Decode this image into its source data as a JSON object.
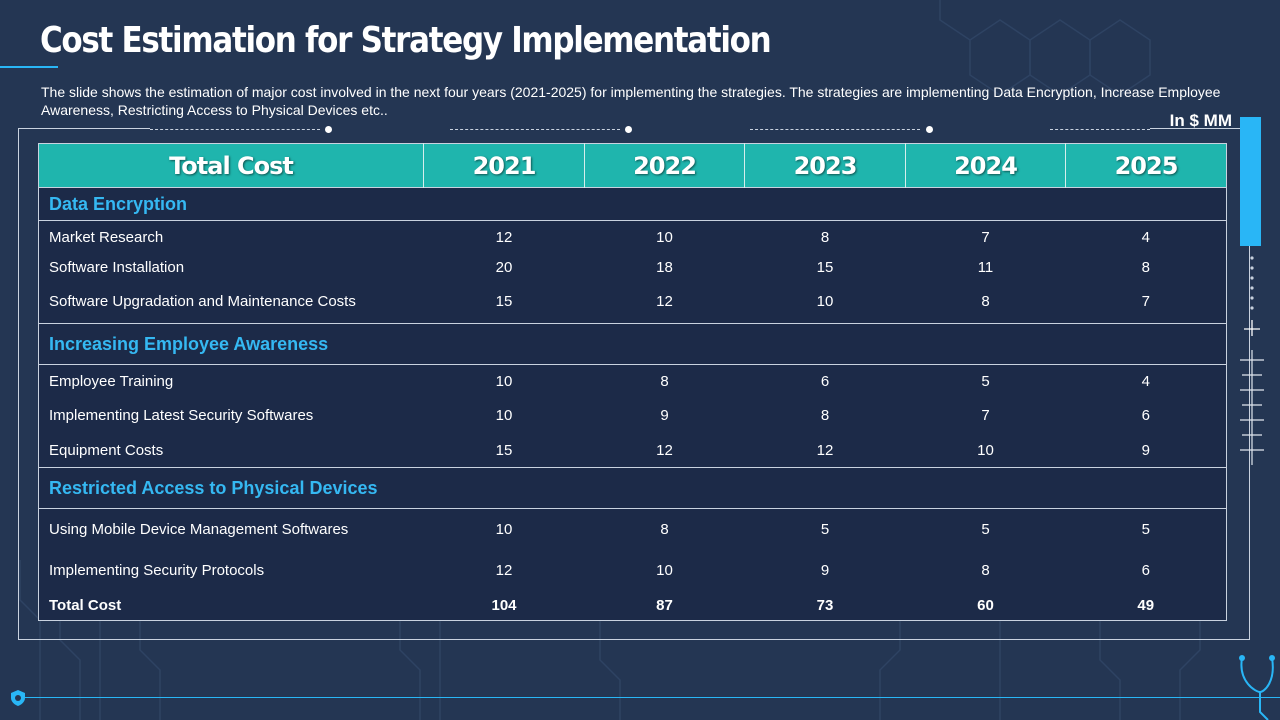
{
  "title": "Cost Estimation for Strategy Implementation",
  "description": "The slide shows the estimation of major cost involved in the next four years (2021-2025) for implementing the strategies. The strategies are implementing Data Encryption, Increase Employee Awareness, Restricting Access to Physical Devices etc..",
  "unit": "In $ MM",
  "table": {
    "headers": [
      "Total  Cost",
      "2021",
      "2022",
      "2023",
      "2024",
      "2025"
    ],
    "sections": [
      {
        "name": "Data Encryption",
        "rows": [
          {
            "label": "Market Research",
            "values": [
              "12",
              "10",
              "8",
              "7",
              "4"
            ]
          },
          {
            "label": "Software Installation",
            "values": [
              "20",
              "18",
              "15",
              "11",
              "8"
            ]
          },
          {
            "label": "Software Upgradation and Maintenance Costs",
            "values": [
              "15",
              "12",
              "10",
              "8",
              "7"
            ]
          }
        ]
      },
      {
        "name": "Increasing Employee Awareness",
        "rows": [
          {
            "label": "Employee Training",
            "values": [
              "10",
              "8",
              "6",
              "5",
              "4"
            ]
          },
          {
            "label": "Implementing  Latest Security Softwares",
            "values": [
              "10",
              "9",
              "8",
              "7",
              "6"
            ]
          },
          {
            "label": "Equipment Costs",
            "values": [
              "15",
              "12",
              "12",
              "10",
              "9"
            ]
          }
        ]
      },
      {
        "name": "Restricted Access to Physical Devices",
        "rows": [
          {
            "label": "Using Mobile Device Management Softwares",
            "values": [
              "10",
              "8",
              "5",
              "5",
              "5"
            ]
          },
          {
            "label": "Implementing  Security Protocols",
            "values": [
              "12",
              "10",
              "9",
              "8",
              "6"
            ]
          }
        ]
      }
    ],
    "total": {
      "label": "Total Cost",
      "values": [
        "104",
        "87",
        "73",
        "60",
        "49"
      ]
    }
  },
  "colors": {
    "accent": "#29b6f6",
    "header_teal": "#1fb5ad",
    "background": "#243653",
    "section_text": "#35b8f2"
  },
  "icons": [
    "shield-icon",
    "stethoscope-icon",
    "heartbeat-icon"
  ]
}
